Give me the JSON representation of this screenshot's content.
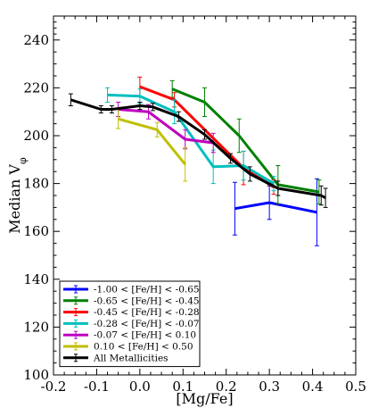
{
  "chart_data": {
    "type": "line",
    "xlabel": "[Mg/Fe]",
    "ylabel": "Median V",
    "ylabel_subscript": "φ",
    "xlim": [
      -0.2,
      0.5
    ],
    "ylim": [
      100,
      250
    ],
    "xticks": [
      -0.2,
      -0.1,
      0.0,
      0.1,
      0.2,
      0.3,
      0.4,
      0.5
    ],
    "xtick_labels": [
      "-0.2",
      "-0.1",
      "0.0",
      "0.1",
      "0.2",
      "0.3",
      "0.4",
      "0.5"
    ],
    "yticks": [
      100,
      120,
      140,
      160,
      180,
      200,
      220,
      240
    ],
    "ytick_labels": [
      "100",
      "120",
      "140",
      "160",
      "180",
      "200",
      "220",
      "240"
    ],
    "grid": false,
    "legend_position": "bottom-left",
    "series": [
      {
        "name": "-1.00 < [Fe/H] < -0.65",
        "color": "#0000ff",
        "x": [
          0.22,
          0.3,
          0.41
        ],
        "y": [
          169.5,
          172,
          168
        ],
        "err": [
          11,
          7,
          14
        ]
      },
      {
        "name": "-0.65 < [Fe/H] < -0.45",
        "color": "#008000",
        "x": [
          0.075,
          0.15,
          0.23,
          0.32,
          0.415
        ],
        "y": [
          219.5,
          214,
          200,
          179.5,
          176.5
        ],
        "err": [
          3.5,
          6,
          7,
          8,
          5
        ]
      },
      {
        "name": "-0.45 < [Fe/H] < -0.28",
        "color": "#ff0000",
        "x": [
          0.0,
          0.08,
          0.24,
          0.31
        ],
        "y": [
          220.5,
          215,
          186.5,
          178.5
        ],
        "err": [
          4,
          3,
          7,
          3
        ]
      },
      {
        "name": "-0.28 < [Fe/H] < -0.07",
        "color": "#00bfbf",
        "x": [
          -0.075,
          0.0,
          0.08,
          0.17,
          0.24,
          0.31
        ],
        "y": [
          217,
          216.5,
          210,
          187,
          187.5,
          180
        ],
        "err": [
          3,
          3,
          5,
          7,
          6,
          3
        ]
      },
      {
        "name": "-0.07 < [Fe/H] < 0.10",
        "color": "#bf00bf",
        "x": [
          -0.05,
          0.02,
          0.105,
          0.17
        ],
        "y": [
          211,
          210,
          198.5,
          197
        ],
        "err": [
          3,
          3,
          4,
          4
        ]
      },
      {
        "name": "0.10 < [Fe/H] < 0.50",
        "color": "#bfbf00",
        "x": [
          -0.05,
          0.04,
          0.105
        ],
        "y": [
          207,
          202.5,
          188
        ],
        "err": [
          4,
          3,
          7
        ]
      },
      {
        "name": "All Metallicities",
        "color": "#000000",
        "x": [
          -0.16,
          -0.09,
          -0.065,
          0.0,
          0.03,
          0.09,
          0.15,
          0.21,
          0.255,
          0.32,
          0.42,
          0.43
        ],
        "y": [
          215,
          211,
          211,
          212.5,
          212,
          208,
          200.5,
          190.5,
          184,
          178,
          175,
          174
        ],
        "err": [
          2.5,
          1.5,
          1.5,
          1.5,
          1.5,
          2,
          2,
          2,
          3,
          3,
          4,
          4
        ]
      }
    ]
  }
}
